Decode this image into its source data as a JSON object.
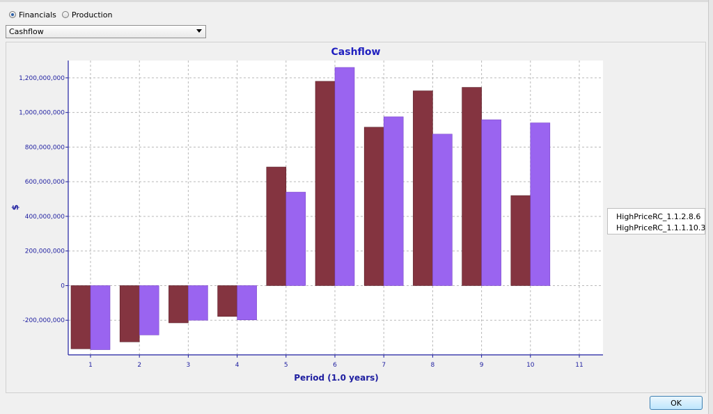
{
  "view_mode": {
    "options": [
      {
        "label": "Financials",
        "selected": true
      },
      {
        "label": "Production",
        "selected": false
      }
    ]
  },
  "report_select": {
    "value": "Cashflow"
  },
  "dialog": {
    "ok_label": "OK"
  },
  "colors": {
    "title": "#1f1fbf",
    "series_1": "#843440",
    "series_2": "#9a64f0",
    "axis": "#1e1ea0"
  },
  "chart_data": {
    "type": "bar",
    "title": "Cashflow",
    "xlabel": "Period (1.0 years)",
    "ylabel": "$",
    "categories": [
      "1",
      "2",
      "3",
      "4",
      "5",
      "6",
      "7",
      "8",
      "9",
      "10",
      "11"
    ],
    "ylim": [
      -400000000,
      1300000000
    ],
    "yticks": [
      -200000000,
      0,
      200000000,
      400000000,
      600000000,
      800000000,
      1000000000,
      1200000000
    ],
    "ytick_labels": [
      "-200,000,000",
      "0",
      "200,000,000",
      "400,000,000",
      "600,000,000",
      "800,000,000",
      "1,000,000,000",
      "1,200,000,000"
    ],
    "grid": true,
    "legend_position": "right",
    "series": [
      {
        "name": "HighPriceRC_1.1.2.8.6",
        "values": [
          -365000000,
          -325000000,
          -215000000,
          -178000000,
          685000000,
          1180000000,
          915000000,
          1125000000,
          1145000000,
          520000000,
          null
        ]
      },
      {
        "name": "HighPriceRC_1.1.1.10.3",
        "values": [
          -370000000,
          -285000000,
          -200000000,
          -198000000,
          540000000,
          1260000000,
          975000000,
          875000000,
          958000000,
          940000000,
          null
        ]
      }
    ]
  }
}
